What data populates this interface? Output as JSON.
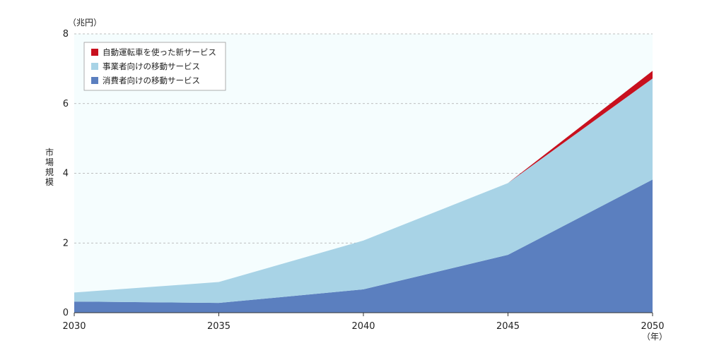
{
  "chart_data": {
    "type": "area",
    "stacked": true,
    "x": [
      2030,
      2035,
      2040,
      2045,
      2050
    ],
    "series": [
      {
        "name": "消費者向けの移動サービス",
        "color": "#5b7fbf",
        "values": [
          0.32,
          0.28,
          0.67,
          1.66,
          3.82
        ]
      },
      {
        "name": "事業者向けの移動サービス",
        "color": "#a8d3e6",
        "values": [
          0.26,
          0.6,
          1.4,
          2.06,
          2.9
        ]
      },
      {
        "name": "自動運転車を使った新サービス",
        "color": "#c8101e",
        "values": [
          0.0,
          0.0,
          0.0,
          0.0,
          0.22
        ]
      }
    ],
    "ylabel": "市場規模",
    "y_unit": "（兆円）",
    "x_unit": "（年）",
    "ylim": [
      0,
      8
    ],
    "yticks": [
      0,
      2,
      4,
      6,
      8
    ],
    "xticks": [
      "2030",
      "2035",
      "2040",
      "2045",
      "2050"
    ],
    "grid": "horizontal-dashed",
    "legend_position": "top-left",
    "plot_background": "#f5fdfe"
  }
}
